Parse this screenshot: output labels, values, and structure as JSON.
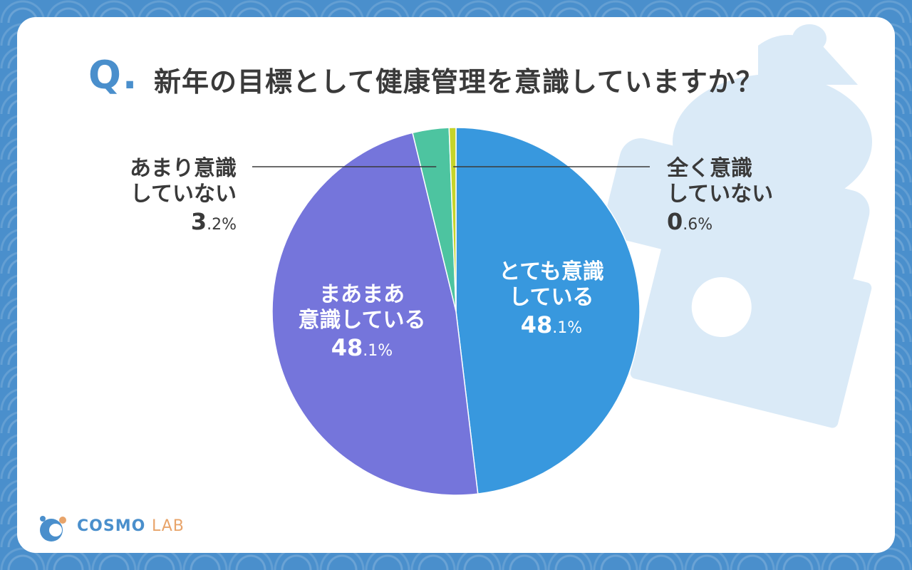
{
  "header": {
    "q_marker": "Q.",
    "question": "新年の目標として健康管理を意識していますか？"
  },
  "logo": {
    "brand": "COSMO",
    "brand_suffix": "LAB",
    "icon": "cosmo-lab-logo-icon"
  },
  "decoration": {
    "icon": "kagami-mochi-icon"
  },
  "colors": {
    "accent": "#4a8fcc",
    "text": "#3a3a3a",
    "slice_very": "#3898de",
    "slice_somewhat": "#7575db",
    "slice_not_much": "#4dc4a0",
    "slice_not_at_all": "#c6d42a"
  },
  "chart_data": {
    "type": "pie",
    "title": "新年の目標として健康管理を意識していますか？",
    "start": "top",
    "direction": "clockwise",
    "slices": [
      {
        "label_lines": [
          "とても意識",
          "している"
        ],
        "value": 48.1,
        "value_int": "48",
        "value_dec": ".1%",
        "color": "#3898de",
        "label_style": "inside"
      },
      {
        "label_lines": [
          "まあまあ",
          "意識している"
        ],
        "value": 48.1,
        "value_int": "48",
        "value_dec": ".1%",
        "color": "#7575db",
        "label_style": "inside"
      },
      {
        "label_lines": [
          "あまり意識",
          "していない"
        ],
        "value": 3.2,
        "value_int": "3",
        "value_dec": ".2%",
        "color": "#4dc4a0",
        "label_style": "callout-left"
      },
      {
        "label_lines": [
          "全く意識",
          "していない"
        ],
        "value": 0.6,
        "value_int": "0",
        "value_dec": ".6%",
        "color": "#c6d42a",
        "label_style": "callout-right"
      }
    ]
  }
}
